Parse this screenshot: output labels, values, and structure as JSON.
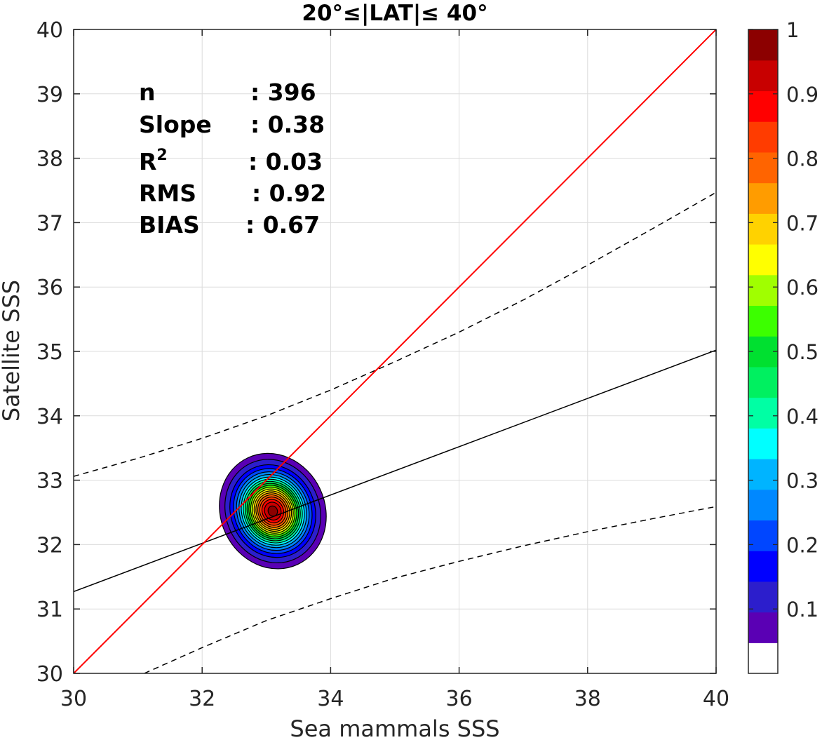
{
  "chart_data": {
    "type": "contour",
    "title": "20°≤|LAT|≤ 40°",
    "xlabel": "Sea mammals SSS",
    "ylabel": "Satellite SSS",
    "xlim": [
      30,
      40
    ],
    "ylim": [
      30,
      40
    ],
    "xticks": [
      "30",
      "32",
      "34",
      "36",
      "38",
      "40"
    ],
    "yticks": [
      "30",
      "31",
      "32",
      "33",
      "34",
      "35",
      "36",
      "37",
      "38",
      "39",
      "40"
    ],
    "grid": true,
    "stats": [
      {
        "label": "n",
        "value": ": 396"
      },
      {
        "label": "Slope",
        "value": ": 0.38"
      },
      {
        "label": "R",
        "sup": "2",
        "value": ": 0.03"
      },
      {
        "label": "RMS",
        "value": ": 0.92"
      },
      {
        "label": "BIAS",
        "value": ": 0.67"
      }
    ],
    "one_to_one_line": {
      "x": [
        30,
        40
      ],
      "y": [
        30,
        40
      ],
      "color": "#ff0000"
    },
    "regression_line": {
      "x": [
        30,
        40
      ],
      "y": [
        31.27,
        35.02
      ],
      "color": "#000000"
    },
    "upper_bound": {
      "x": [
        30,
        31,
        32,
        33,
        34,
        35,
        36,
        37,
        38,
        39,
        40
      ],
      "y": [
        33.06,
        33.34,
        33.65,
        34.0,
        34.4,
        34.84,
        35.3,
        35.8,
        36.34,
        36.9,
        37.47
      ]
    },
    "lower_bound": {
      "x": [
        31.1,
        32,
        33,
        34,
        35,
        36,
        37,
        38,
        39,
        40
      ],
      "y": [
        30.0,
        30.4,
        30.82,
        31.16,
        31.48,
        31.74,
        31.98,
        32.2,
        32.4,
        32.59
      ]
    },
    "density": {
      "center": [
        33.1,
        32.52
      ],
      "sigma": [
        0.32,
        0.36
      ],
      "rotation_deg": 25
    },
    "colorbar": {
      "range": [
        0,
        1
      ],
      "ticks": [
        "0.1",
        "0.2",
        "0.3",
        "0.4",
        "0.5",
        "0.6",
        "0.7",
        "0.8",
        "0.9",
        "1"
      ],
      "levels": 20,
      "colors": [
        "#ffffff",
        "#5a00b4",
        "#2c1ecc",
        "#0000ff",
        "#0046ff",
        "#0088ff",
        "#00b4ff",
        "#00ffff",
        "#00ffa4",
        "#00f060",
        "#00e030",
        "#3cff00",
        "#a0ff00",
        "#ffff00",
        "#ffd200",
        "#ff9c00",
        "#ff6400",
        "#ff3c00",
        "#ff0000",
        "#c80000",
        "#8c0000"
      ]
    }
  }
}
